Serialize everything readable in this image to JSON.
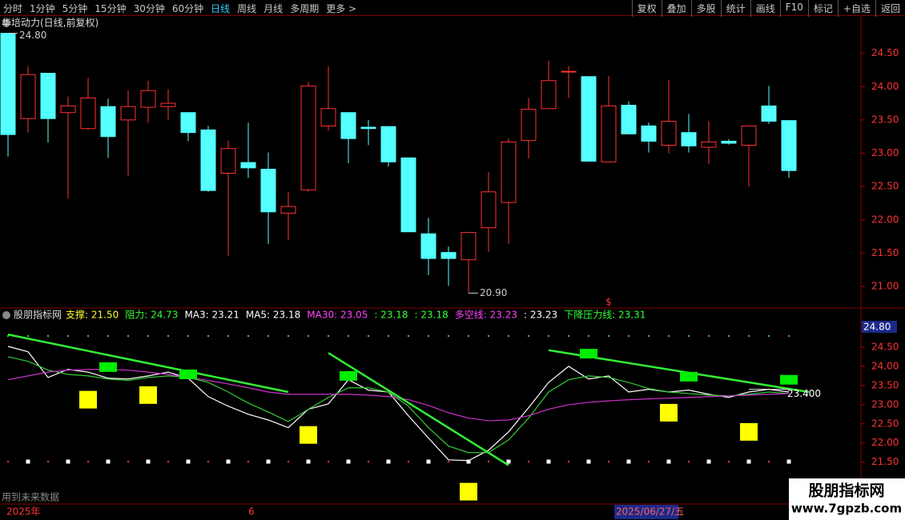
{
  "toolbar": {
    "left": [
      "分时",
      "1分钟",
      "5分钟",
      "15分钟",
      "30分钟",
      "60分钟",
      "日线",
      "周线",
      "月线",
      "多周期",
      "更多 >"
    ],
    "active_index": 6,
    "right": [
      "复权",
      "叠加",
      "多股",
      "统计",
      "画线",
      "F10",
      "标记",
      "+自选",
      "返回"
    ]
  },
  "chart_data": [
    {
      "type": "candlestick",
      "title": "华培动力(日线,前复权)",
      "up_color": "#ff3232",
      "down_color": "#54ffff",
      "open": [
        24.8,
        23.52,
        24.2,
        23.61,
        23.37,
        23.7,
        23.5,
        23.69,
        23.7,
        23.61,
        23.35,
        22.7,
        22.86,
        22.76,
        22.1,
        22.45,
        23.41,
        23.61,
        23.39,
        23.4,
        22.93,
        21.79,
        21.51,
        21.4,
        21.88,
        22.26,
        23.19,
        23.67,
        24.22,
        24.15,
        22.87,
        23.72,
        23.41,
        23.12,
        23.31,
        23.09,
        23.18,
        23.12,
        23.71,
        23.49
      ],
      "high": [
        24.8,
        24.3,
        24.2,
        23.85,
        24.13,
        23.82,
        23.94,
        24.09,
        23.96,
        23.61,
        23.41,
        23.19,
        23.46,
        23.01,
        22.42,
        24.07,
        24.3,
        23.61,
        23.5,
        23.4,
        22.93,
        22.03,
        21.6,
        21.81,
        22.72,
        23.22,
        23.83,
        24.39,
        24.31,
        24.15,
        24.16,
        23.78,
        23.46,
        24.1,
        23.59,
        23.48,
        23.21,
        23.41,
        24.01,
        23.49
      ],
      "low": [
        22.95,
        23.31,
        23.16,
        22.32,
        23.35,
        22.93,
        22.66,
        23.46,
        23.5,
        23.18,
        22.42,
        21.46,
        22.63,
        21.64,
        21.7,
        22.42,
        23.34,
        22.85,
        23.12,
        22.8,
        21.82,
        21.17,
        21.01,
        20.9,
        21.52,
        21.64,
        22.92,
        23.67,
        23.83,
        22.88,
        22.87,
        23.29,
        23.01,
        23.0,
        23.01,
        22.84,
        23.13,
        22.5,
        23.44,
        22.63
      ],
      "close": [
        23.28,
        24.18,
        23.52,
        23.71,
        23.83,
        23.25,
        23.7,
        23.94,
        23.75,
        23.31,
        22.44,
        23.07,
        22.78,
        22.12,
        22.2,
        24.01,
        23.67,
        23.22,
        23.37,
        22.87,
        21.82,
        21.42,
        21.42,
        21.81,
        22.42,
        23.17,
        23.66,
        24.09,
        24.23,
        22.88,
        23.71,
        23.29,
        23.18,
        23.48,
        23.11,
        23.17,
        23.15,
        23.41,
        23.48,
        22.74
      ],
      "ylim": [
        20.7,
        25.0
      ],
      "yticks": [
        {
          "value": 21,
          "label": "21.00"
        },
        {
          "value": 21.5,
          "label": "21.50"
        },
        {
          "value": 22,
          "label": "22.00"
        },
        {
          "value": 22.5,
          "label": "22.50"
        },
        {
          "value": 23,
          "label": "23.00"
        },
        {
          "value": 23.5,
          "label": "23.50"
        },
        {
          "value": 24,
          "label": "24.00"
        },
        {
          "value": 24.5,
          "label": "24.50"
        }
      ],
      "annotations": [
        {
          "label": "24.80",
          "index": 0,
          "value": 24.8
        },
        {
          "label": "20.90",
          "index": 23,
          "value": 20.9
        },
        {
          "label": "$",
          "index": 30
        }
      ]
    },
    {
      "type": "line",
      "title": "股朋指标网",
      "header_items": [
        {
          "text": "支撑: 21.50",
          "color": "#ffff33"
        },
        {
          "text": "阻力: 24.73",
          "color": "#33ff33"
        },
        {
          "text": "MA3: 23.21",
          "color": "#ffffff"
        },
        {
          "text": "MA5: 23.18",
          "color": "#ffffff"
        },
        {
          "text": "MA30: 23.05",
          "color": "#ff44ff"
        },
        {
          "text": ": 23.18",
          "color": "#33ff33"
        },
        {
          "text": ": 23.18",
          "color": "#33ff33"
        },
        {
          "text": "多空线: 23.23",
          "color": "#ff44ff"
        },
        {
          "text": ": 23.23",
          "color": "#ffffff"
        },
        {
          "text": "下降压力线: 23.31",
          "color": "#33ff33"
        }
      ],
      "series": [
        {
          "color": "#ffffff",
          "values": [
            24.52,
            24.38,
            23.71,
            23.92,
            23.85,
            23.69,
            23.67,
            23.75,
            23.85,
            23.69,
            23.21,
            22.96,
            22.75,
            22.6,
            22.4,
            22.88,
            23.02,
            23.65,
            23.38,
            23.33,
            22.71,
            22.13,
            21.56,
            21.54,
            21.81,
            22.29,
            22.92,
            23.58,
            24.0,
            23.67,
            23.75,
            23.33,
            23.4,
            23.33,
            23.38,
            23.27,
            23.19,
            23.33,
            23.4,
            23.33
          ]
        },
        {
          "color": "#33cc33",
          "values": [
            24.25,
            24.13,
            23.9,
            23.79,
            23.75,
            23.67,
            23.63,
            23.71,
            23.75,
            23.71,
            23.58,
            23.33,
            23.04,
            22.81,
            22.56,
            22.88,
            23.19,
            23.44,
            23.44,
            23.33,
            22.96,
            22.4,
            21.92,
            21.75,
            21.75,
            22.08,
            22.65,
            23.33,
            23.65,
            23.75,
            23.71,
            23.58,
            23.42,
            23.33,
            23.29,
            23.25,
            23.23,
            23.27,
            23.33,
            23.29
          ]
        },
        {
          "color": "#cc33cc",
          "values": [
            23.65,
            23.75,
            23.85,
            23.9,
            23.92,
            23.92,
            23.9,
            23.85,
            23.79,
            23.71,
            23.63,
            23.54,
            23.44,
            23.33,
            23.27,
            23.27,
            23.27,
            23.27,
            23.25,
            23.21,
            23.13,
            22.98,
            22.79,
            22.65,
            22.58,
            22.6,
            22.71,
            22.88,
            23.0,
            23.06,
            23.1,
            23.13,
            23.15,
            23.17,
            23.19,
            23.21,
            23.23,
            23.25,
            23.27,
            23.29
          ]
        }
      ],
      "trend_lines": {
        "color": "#33ee33",
        "lines": [
          {
            "start_index": 0,
            "start_value": 24.83,
            "end_index": 14,
            "end_value": 23.33
          },
          {
            "start_index": 16,
            "start_value": 24.35,
            "end_index": 25,
            "end_value": 21.42
          },
          {
            "start_index": 27,
            "start_value": 24.42,
            "end_index": 40,
            "end_value": 23.33
          }
        ]
      },
      "markers": [
        {
          "color": "#00ee00",
          "points": [
            {
              "index": 5,
              "value": 23.98
            },
            {
              "index": 9,
              "value": 23.79
            },
            {
              "index": 17,
              "value": 23.75
            },
            {
              "index": 29,
              "value": 24.33
            },
            {
              "index": 34,
              "value": 23.73
            },
            {
              "index": 39,
              "value": 23.65
            }
          ]
        },
        {
          "color": "#ffff00",
          "points": [
            {
              "index": 4,
              "value": 23.13
            },
            {
              "index": 7,
              "value": 23.25
            },
            {
              "index": 15,
              "value": 22.21
            },
            {
              "index": 23,
              "value": 20.73
            },
            {
              "index": 33,
              "value": 22.79
            },
            {
              "index": 37,
              "value": 22.29
            }
          ]
        }
      ],
      "ylim": [
        20.45,
        25.0
      ],
      "yticks": [
        {
          "value": 21.5,
          "label": "21.50"
        },
        {
          "value": 22,
          "label": "22.00"
        },
        {
          "value": 22.5,
          "label": "22.50"
        },
        {
          "value": 23,
          "label": "23.00"
        },
        {
          "value": 23.5,
          "label": "23.50"
        },
        {
          "value": 24,
          "label": "24.00"
        },
        {
          "value": 24.5,
          "label": "24.50"
        }
      ],
      "annotations": [
        {
          "label": "24.80",
          "position": "axis-top"
        },
        {
          "label": "23.400",
          "index": 39,
          "value": 23.4
        }
      ]
    }
  ],
  "footer": {
    "note": "用到未来数据",
    "year": "2025年",
    "month": "6",
    "cursor_date": "2025/06/27/五"
  },
  "watermark": {
    "name": "股朋指标网",
    "url": "www.7gpzb.com"
  }
}
